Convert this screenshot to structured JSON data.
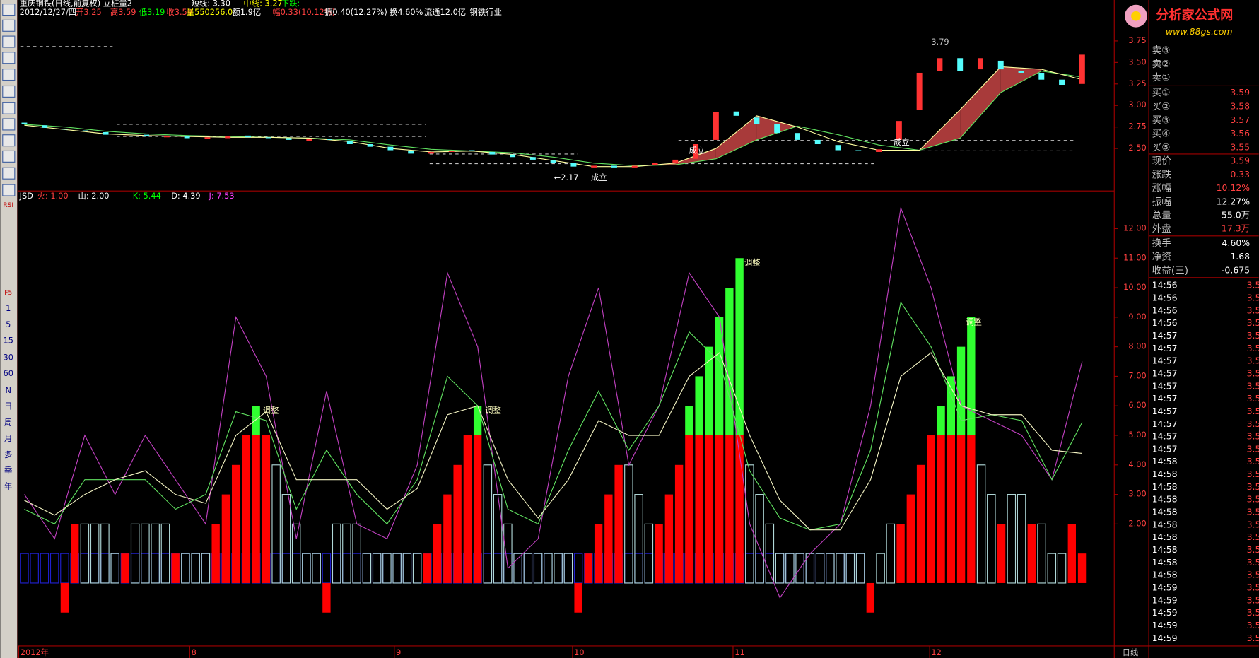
{
  "toolbar": {
    "labels": [
      "RSI",
      "F5",
      "1",
      "5",
      "15",
      "30",
      "60",
      "N",
      "日",
      "周",
      "月",
      "多",
      "季",
      "年"
    ]
  },
  "header": {
    "title": "重庆钢铁(日线,前复权) 立桩量2",
    "short": "短线: 3.30",
    "mid": "中线: 3.27",
    "trend": "下跌: -",
    "quote": [
      "2012/12/27/四",
      "开3.25",
      "高3.59",
      "低3.19",
      "收3.59",
      "量550256.0",
      "额1.9亿",
      "幅0.33(10.12%)",
      "振0.40(12.27%)",
      "换4.60%",
      "流通12.0亿",
      "钢铁行业"
    ]
  },
  "price_chart": {
    "ylim": [
      2.006,
      4.058
    ],
    "yticks": [
      {
        "value": 3.75,
        "label": "3.75"
      },
      {
        "value": 3.5,
        "label": "3.50"
      },
      {
        "value": 3.25,
        "label": "3.25"
      },
      {
        "value": 3,
        "label": "3.00"
      },
      {
        "value": 2.75,
        "label": "2.75"
      },
      {
        "value": 2.5,
        "label": "2.50"
      }
    ],
    "candles": [
      [
        2.8,
        2.78
      ],
      [
        2.77,
        2.74
      ],
      [
        2.73,
        2.72
      ],
      [
        2.71,
        2.7
      ],
      [
        2.69,
        2.66
      ],
      [
        2.64,
        2.65
      ],
      [
        2.66,
        2.64
      ],
      [
        2.63,
        2.64
      ],
      [
        2.64,
        2.62
      ],
      [
        2.61,
        2.63
      ],
      [
        2.62,
        2.64
      ],
      [
        2.65,
        2.63
      ],
      [
        2.63,
        2.62
      ],
      [
        2.62,
        2.6
      ],
      [
        2.59,
        2.61
      ],
      [
        2.61,
        2.6
      ],
      [
        2.59,
        2.55
      ],
      [
        2.55,
        2.52
      ],
      [
        2.52,
        2.48
      ],
      [
        2.47,
        2.44
      ],
      [
        2.44,
        2.46
      ],
      [
        2.46,
        2.47
      ],
      [
        2.48,
        2.47
      ],
      [
        2.46,
        2.43
      ],
      [
        2.43,
        2.4
      ],
      [
        2.4,
        2.37
      ],
      [
        2.36,
        2.33
      ],
      [
        2.33,
        2.29
      ],
      [
        2.28,
        2.3
      ],
      [
        2.3,
        2.28
      ],
      [
        2.28,
        2.3
      ],
      [
        2.31,
        2.33
      ],
      [
        2.33,
        2.37
      ],
      [
        2.38,
        2.55
      ],
      [
        2.6,
        2.92
      ],
      [
        2.93,
        2.88
      ],
      [
        2.86,
        2.78
      ],
      [
        2.78,
        2.68
      ],
      [
        2.68,
        2.6
      ],
      [
        2.6,
        2.55
      ],
      [
        2.54,
        2.48
      ],
      [
        2.48,
        2.47
      ],
      [
        2.46,
        2.49
      ],
      [
        2.6,
        2.82
      ],
      [
        2.95,
        3.38
      ],
      [
        3.4,
        3.55
      ],
      [
        3.55,
        3.4
      ],
      [
        3.42,
        3.55
      ],
      [
        3.52,
        3.42
      ],
      [
        3.4,
        3.38
      ],
      [
        3.38,
        3.3
      ],
      [
        3.3,
        3.24
      ],
      [
        3.25,
        3.59
      ]
    ],
    "ma_short": [
      2.77,
      2.72,
      2.67,
      2.65,
      2.64,
      2.63,
      2.63,
      2.62,
      2.58,
      2.5,
      2.46,
      2.47,
      2.43,
      2.36,
      2.29,
      2.29,
      2.33,
      2.5,
      2.88,
      2.75,
      2.58,
      2.48,
      2.48,
      2.95,
      3.45,
      3.42,
      3.3
    ],
    "ma_long": [
      2.78,
      2.75,
      2.7,
      2.67,
      2.65,
      2.64,
      2.63,
      2.62,
      2.6,
      2.54,
      2.49,
      2.47,
      2.45,
      2.4,
      2.33,
      2.3,
      2.31,
      2.38,
      2.6,
      2.76,
      2.66,
      2.54,
      2.48,
      2.62,
      3.15,
      3.4,
      3.33
    ],
    "annotations": [
      "3.79",
      "←2.17",
      "成立",
      "成立",
      "成立"
    ]
  },
  "indicator": {
    "header": [
      "JSD",
      "火: 1.00",
      "山: 2.00",
      "K: 5.44",
      "D: 4.39",
      "J: 7.53"
    ],
    "ylim": [
      -2.13,
      13.22
    ],
    "yticks": [
      {
        "value": 12,
        "label": "12.00"
      },
      {
        "value": 11,
        "label": "11.00"
      },
      {
        "value": 10,
        "label": "10.00"
      },
      {
        "value": 9,
        "label": "9.00"
      },
      {
        "value": 8,
        "label": "8.00"
      },
      {
        "value": 7,
        "label": "7.00"
      },
      {
        "value": 6,
        "label": "6.00"
      },
      {
        "value": 5,
        "label": "5.00"
      },
      {
        "value": 4,
        "label": "4.00"
      },
      {
        "value": 3,
        "label": "3.00"
      },
      {
        "value": 2,
        "label": "2.00"
      }
    ],
    "red": [
      null,
      null,
      null,
      null,
      -1,
      2,
      null,
      null,
      null,
      null,
      1,
      null,
      null,
      null,
      null,
      1,
      null,
      null,
      null,
      2,
      3,
      4,
      5,
      5,
      5,
      null,
      null,
      null,
      null,
      null,
      -1,
      null,
      null,
      null,
      null,
      null,
      null,
      null,
      null,
      null,
      1,
      2,
      3,
      4,
      5,
      5,
      null,
      null,
      null,
      null,
      null,
      null,
      null,
      null,
      null,
      -1,
      1,
      2,
      3,
      4,
      null,
      null,
      null,
      2,
      3,
      4,
      5,
      5,
      5,
      5,
      5,
      5,
      null,
      null,
      null,
      null,
      null,
      null,
      null,
      null,
      null,
      null,
      null,
      null,
      -1,
      null,
      null,
      2,
      3,
      4,
      5,
      5,
      5,
      5,
      5,
      null,
      null,
      2,
      null,
      null,
      2,
      null,
      null,
      null,
      2,
      1
    ],
    "gray": [
      null,
      null,
      null,
      null,
      null,
      null,
      2,
      2,
      2,
      1,
      null,
      2,
      2,
      2,
      2,
      null,
      1,
      1,
      1,
      null,
      null,
      null,
      null,
      null,
      null,
      4,
      3,
      2,
      1,
      1,
      null,
      2,
      2,
      2,
      1,
      1,
      1,
      1,
      1,
      1,
      null,
      null,
      null,
      null,
      null,
      null,
      4,
      3,
      2,
      1,
      1,
      1,
      1,
      1,
      1,
      null,
      null,
      null,
      null,
      null,
      4,
      3,
      2,
      null,
      null,
      null,
      null,
      null,
      null,
      null,
      null,
      null,
      4,
      3,
      2,
      1,
      1,
      1,
      1,
      1,
      1,
      1,
      1,
      1,
      null,
      1,
      2,
      null,
      null,
      null,
      null,
      null,
      null,
      null,
      null,
      4,
      3,
      null,
      3,
      3,
      null,
      2,
      1,
      1,
      null,
      null
    ],
    "green": [
      null,
      null,
      null,
      null,
      null,
      null,
      null,
      null,
      null,
      null,
      null,
      null,
      null,
      null,
      null,
      null,
      null,
      null,
      null,
      null,
      null,
      null,
      null,
      6,
      null,
      null,
      null,
      null,
      null,
      null,
      null,
      null,
      null,
      null,
      null,
      null,
      null,
      null,
      null,
      null,
      null,
      null,
      null,
      null,
      null,
      6,
      null,
      null,
      null,
      null,
      null,
      null,
      null,
      null,
      null,
      null,
      null,
      null,
      null,
      null,
      null,
      null,
      null,
      null,
      null,
      null,
      6,
      7,
      8,
      9,
      10,
      11,
      null,
      null,
      null,
      null,
      null,
      null,
      null,
      null,
      null,
      null,
      null,
      null,
      null,
      null,
      null,
      null,
      null,
      null,
      null,
      6,
      7,
      8,
      9,
      null,
      null,
      null,
      null,
      null,
      null,
      null,
      null,
      null,
      null,
      null
    ],
    "blue": [
      1,
      1,
      1,
      1,
      1,
      1,
      1,
      1,
      1,
      1,
      1,
      1,
      1,
      1,
      1,
      1,
      1,
      1,
      1,
      1,
      1,
      1,
      1,
      1,
      1,
      1,
      1,
      1,
      1,
      1,
      1,
      1,
      1,
      1,
      1,
      1,
      1,
      1,
      1,
      1,
      1,
      1,
      1,
      1,
      1,
      1,
      1,
      1,
      1,
      1,
      1,
      1,
      1,
      1,
      1,
      1,
      1,
      1,
      1,
      1,
      1,
      1,
      1,
      1,
      1,
      1,
      1,
      1,
      1,
      1,
      1,
      1,
      1,
      1,
      1,
      1,
      1,
      1,
      1,
      1,
      1,
      1,
      1,
      1,
      null,
      null,
      null,
      null,
      null,
      null,
      null,
      null,
      null,
      null,
      null,
      null,
      null,
      null,
      null,
      null,
      null,
      null,
      null,
      null,
      null,
      null
    ],
    "J": [
      3,
      1.5,
      5,
      3,
      5,
      3.5,
      2,
      9,
      7,
      1.5,
      6.5,
      2,
      1.5,
      4,
      10.5,
      8,
      0.5,
      1.5,
      7,
      10,
      4,
      6,
      10.5,
      9,
      2,
      -0.5,
      1,
      2,
      6,
      12.7,
      10,
      6,
      5.5,
      5,
      3.5,
      7.5
    ],
    "K": [
      2.5,
      2,
      3.5,
      3.5,
      3.5,
      2.5,
      3,
      5.8,
      5.5,
      2.5,
      4.5,
      3,
      2,
      3.5,
      7,
      6,
      2.5,
      2,
      4.5,
      6.5,
      4.5,
      6,
      8.5,
      7.5,
      3.8,
      2.2,
      1.8,
      2,
      4.5,
      9.5,
      8,
      5.5,
      5.7,
      5.5,
      3.5,
      5.44
    ],
    "D": [
      2.8,
      2.3,
      3,
      3.5,
      3.8,
      3,
      2.7,
      5,
      5.8,
      3.5,
      3.5,
      3.5,
      2.5,
      3.2,
      5.7,
      6,
      3.5,
      2.2,
      3.5,
      5.5,
      5,
      5,
      7,
      7.8,
      5,
      2.8,
      1.8,
      1.8,
      3.5,
      7,
      7.8,
      6,
      5.7,
      5.7,
      4.5,
      4.39
    ],
    "annotations": [
      "调整",
      "调整",
      "调整",
      "调整"
    ]
  },
  "xaxis": {
    "labels": [
      "2012年",
      "8",
      "9",
      "10",
      "11",
      "12"
    ],
    "period": "日线"
  },
  "logo": {
    "name": "分析家公式网",
    "url": "www.88gs.com"
  },
  "quote_panel": {
    "asks": [
      "卖③",
      "卖②",
      "卖①"
    ],
    "bids": [
      [
        "买①",
        "3.59"
      ],
      [
        "买②",
        "3.58"
      ],
      [
        "买③",
        "3.57"
      ],
      [
        "买④",
        "3.56"
      ],
      [
        "买⑤",
        "3.55"
      ]
    ],
    "stats": [
      [
        "现价",
        "3.59"
      ],
      [
        "涨跌",
        "0.33"
      ],
      [
        "涨幅",
        "10.12%"
      ],
      [
        "振幅",
        "12.27%"
      ],
      [
        "总量",
        "55.0万"
      ],
      [
        "外盘",
        "17.3万"
      ],
      [
        "换手",
        "4.60%"
      ],
      [
        "净资",
        "1.68"
      ],
      [
        "收益(三)",
        "-0.675"
      ]
    ],
    "ticks": [
      [
        "14:56",
        "3.5"
      ],
      [
        "14:56",
        "3.5"
      ],
      [
        "14:56",
        "3.5"
      ],
      [
        "14:56",
        "3.5"
      ],
      [
        "14:57",
        "3.5"
      ],
      [
        "14:57",
        "3.5"
      ],
      [
        "14:57",
        "3.5"
      ],
      [
        "14:57",
        "3.5"
      ],
      [
        "14:57",
        "3.5"
      ],
      [
        "14:57",
        "3.5"
      ],
      [
        "14:57",
        "3.5"
      ],
      [
        "14:57",
        "3.5"
      ],
      [
        "14:57",
        "3.5"
      ],
      [
        "14:57",
        "3.5"
      ],
      [
        "14:58",
        "3.5"
      ],
      [
        "14:58",
        "3.5"
      ],
      [
        "14:58",
        "3.5"
      ],
      [
        "14:58",
        "3.5"
      ],
      [
        "14:58",
        "3.5"
      ],
      [
        "14:58",
        "3.5"
      ],
      [
        "14:58",
        "3.5"
      ],
      [
        "14:58",
        "3.5"
      ],
      [
        "14:58",
        "3.5"
      ],
      [
        "14:58",
        "3.5"
      ],
      [
        "14:59",
        "3.5"
      ],
      [
        "14:59",
        "3.5"
      ],
      [
        "14:59",
        "3.5"
      ],
      [
        "14:59",
        "3.5"
      ],
      [
        "14:59",
        "3.5"
      ]
    ]
  }
}
